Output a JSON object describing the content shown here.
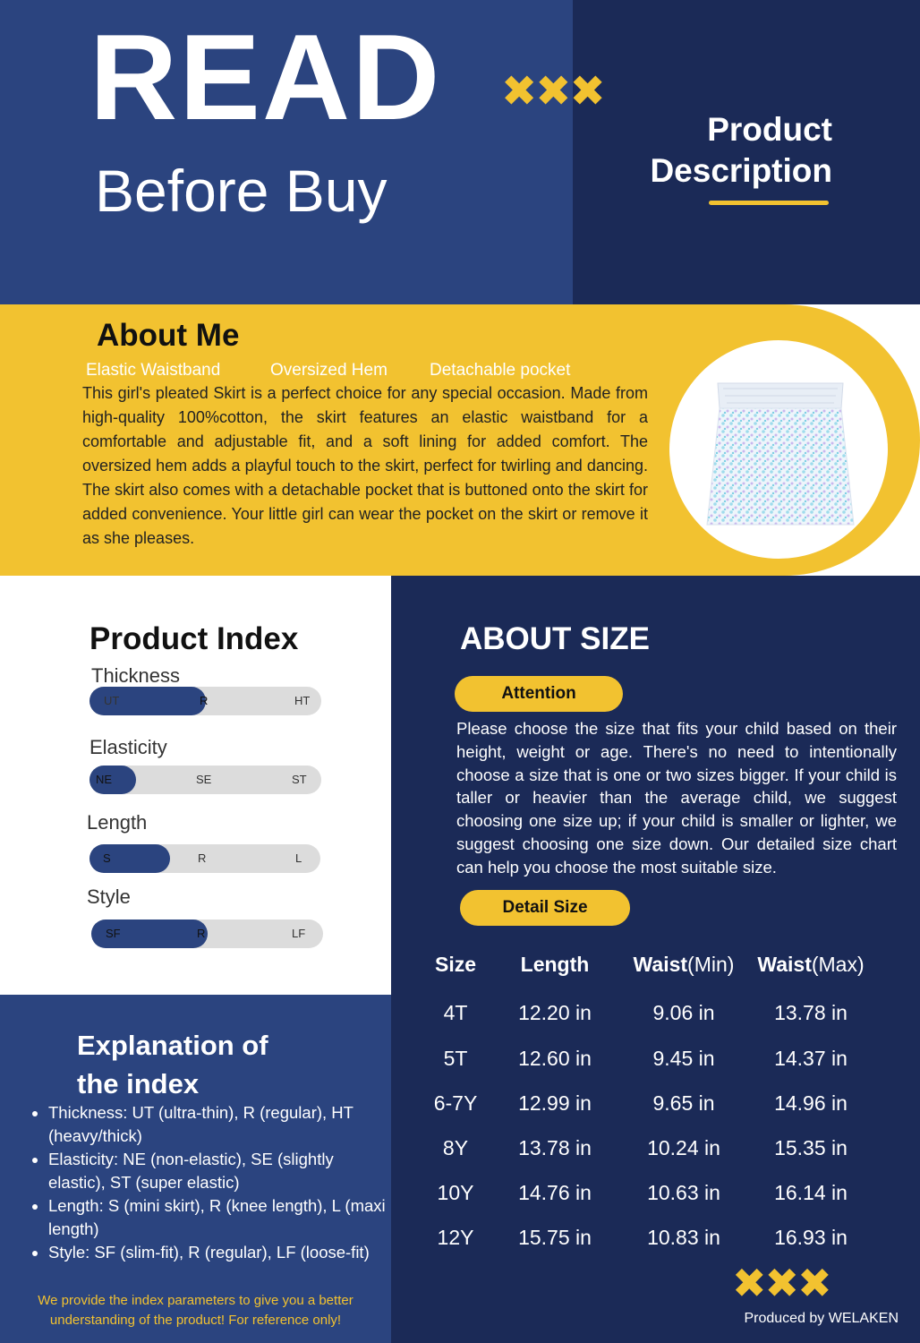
{
  "header": {
    "title_main": "READ",
    "title_sub": "Before Buy",
    "marks": "✖✖✖",
    "section_line1": "Product",
    "section_line2": "Description"
  },
  "about_me": {
    "title": "About Me",
    "tags": [
      "Elastic Waistband",
      "Oversized Hem",
      "Detachable pocket"
    ],
    "text": "This girl's pleated Skirt is a perfect choice for any special occasion. Made from high-quality 100%cotton, the skirt features an elastic waistband for a comfortable and adjustable fit, and a soft lining for added comfort. The oversized hem adds a playful touch to the skirt, perfect for twirling and dancing. The skirt also comes with a detachable pocket that is buttoned onto the skirt for added convenience. Your little girl can wear the pocket on the skirt or remove it as she pleases."
  },
  "product_index": {
    "title": "Product Index",
    "scales": [
      {
        "label": "Thickness",
        "ticks": [
          "UT",
          "R",
          "HT"
        ],
        "level": 0.5
      },
      {
        "label": "Elasticity",
        "ticks": [
          "NE",
          "SE",
          "ST"
        ],
        "level": 0.2
      },
      {
        "label": "Length",
        "ticks": [
          "S",
          "R",
          "L"
        ],
        "level": 0.35
      },
      {
        "label": "Style",
        "ticks": [
          "SF",
          "R",
          "LF"
        ],
        "level": 0.5
      }
    ]
  },
  "explanation": {
    "title_line1": "Explanation of",
    "title_line2": "the index",
    "items": [
      "Thickness: UT (ultra-thin), R (regular), HT (heavy/thick)",
      "Elasticity: NE (non-elastic), SE (slightly elastic), ST (super elastic)",
      "Length: S (mini skirt), R (knee length), L (maxi length)",
      "Style: SF (slim-fit), R (regular), LF (loose-fit)"
    ],
    "note": "We provide the index parameters to give you a better understanding of the product! For reference only!"
  },
  "about_size": {
    "title": "ABOUT SIZE",
    "attention_label": "Attention",
    "text": "Please choose the size that fits your child based on their height, weight or age. There's no need to intentionally choose a size that is one or two sizes bigger. If your child is taller or heavier than the average child, we suggest choosing one size up; if your child is smaller or lighter, we suggest choosing one size down. Our detailed size chart can help you choose the most suitable size.",
    "detail_label": "Detail Size",
    "table": {
      "headers": [
        {
          "bold": "Size",
          "rest": ""
        },
        {
          "bold": "Length",
          "rest": ""
        },
        {
          "bold": "Waist",
          "rest": "(Min)"
        },
        {
          "bold": "Waist",
          "rest": "(Max)"
        }
      ],
      "rows": [
        [
          "4T",
          "12.20 in",
          "9.06 in",
          "13.78 in"
        ],
        [
          "5T",
          "12.60 in",
          "9.45 in",
          "14.37 in"
        ],
        [
          "6-7Y",
          "12.99 in",
          "9.65 in",
          "14.96 in"
        ],
        [
          "8Y",
          "13.78 in",
          "10.24 in",
          "15.35 in"
        ],
        [
          "10Y",
          "14.76 in",
          "10.63 in",
          "16.14 in"
        ],
        [
          "12Y",
          "15.75 in",
          "10.83 in",
          "16.93 in"
        ]
      ]
    },
    "footer_marks": "✖✖✖",
    "produced_by": "Produced by WELAKEN"
  },
  "colors": {
    "navy": "#1b2a57",
    "royal": "#2b447f",
    "accent_yellow": "#f2c230"
  },
  "icons": {
    "product_photo": "skirt-photo",
    "marks": "cross-marks"
  }
}
